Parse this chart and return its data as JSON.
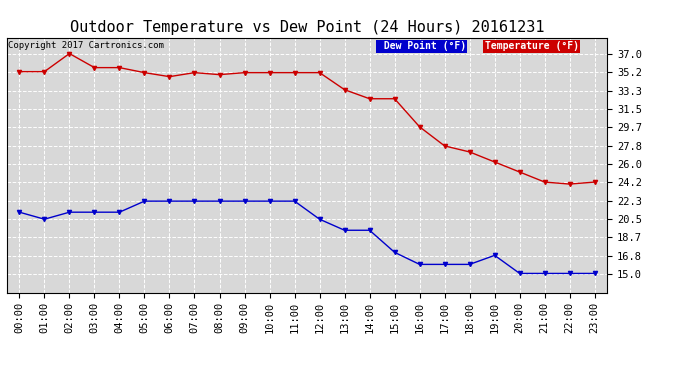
{
  "title": "Outdoor Temperature vs Dew Point (24 Hours) 20161231",
  "copyright": "Copyright 2017 Cartronics.com",
  "x_labels": [
    "00:00",
    "01:00",
    "02:00",
    "03:00",
    "04:00",
    "05:00",
    "06:00",
    "07:00",
    "08:00",
    "09:00",
    "10:00",
    "11:00",
    "12:00",
    "13:00",
    "14:00",
    "15:00",
    "16:00",
    "17:00",
    "18:00",
    "19:00",
    "20:00",
    "21:00",
    "22:00",
    "23:00"
  ],
  "temperature": [
    35.2,
    35.2,
    37.0,
    35.6,
    35.6,
    35.1,
    34.7,
    35.1,
    34.9,
    35.1,
    35.1,
    35.1,
    35.1,
    33.4,
    32.5,
    32.5,
    29.7,
    27.8,
    27.2,
    26.2,
    25.2,
    24.2,
    24.0,
    24.2
  ],
  "dew_point": [
    21.2,
    20.5,
    21.2,
    21.2,
    21.2,
    22.3,
    22.3,
    22.3,
    22.3,
    22.3,
    22.3,
    22.3,
    20.5,
    19.4,
    19.4,
    17.2,
    16.0,
    16.0,
    16.0,
    16.9,
    15.1,
    15.1,
    15.1,
    15.1
  ],
  "temp_color": "#cc0000",
  "dew_color": "#0000cc",
  "bg_color": "#ffffff",
  "plot_bg_color": "#d8d8d8",
  "grid_color": "#ffffff",
  "ylim_min": 13.2,
  "ylim_max": 38.6,
  "yticks": [
    15.0,
    16.8,
    18.7,
    20.5,
    22.3,
    24.2,
    26.0,
    27.8,
    29.7,
    31.5,
    33.3,
    35.2,
    37.0
  ],
  "legend_dew_bg": "#0000cc",
  "legend_temp_bg": "#cc0000",
  "legend_text_color": "#ffffff",
  "title_fontsize": 11,
  "tick_fontsize": 7.5,
  "copyright_fontsize": 6.5,
  "legend_fontsize": 7,
  "marker": "v",
  "marker_size": 3,
  "linewidth": 1.0
}
